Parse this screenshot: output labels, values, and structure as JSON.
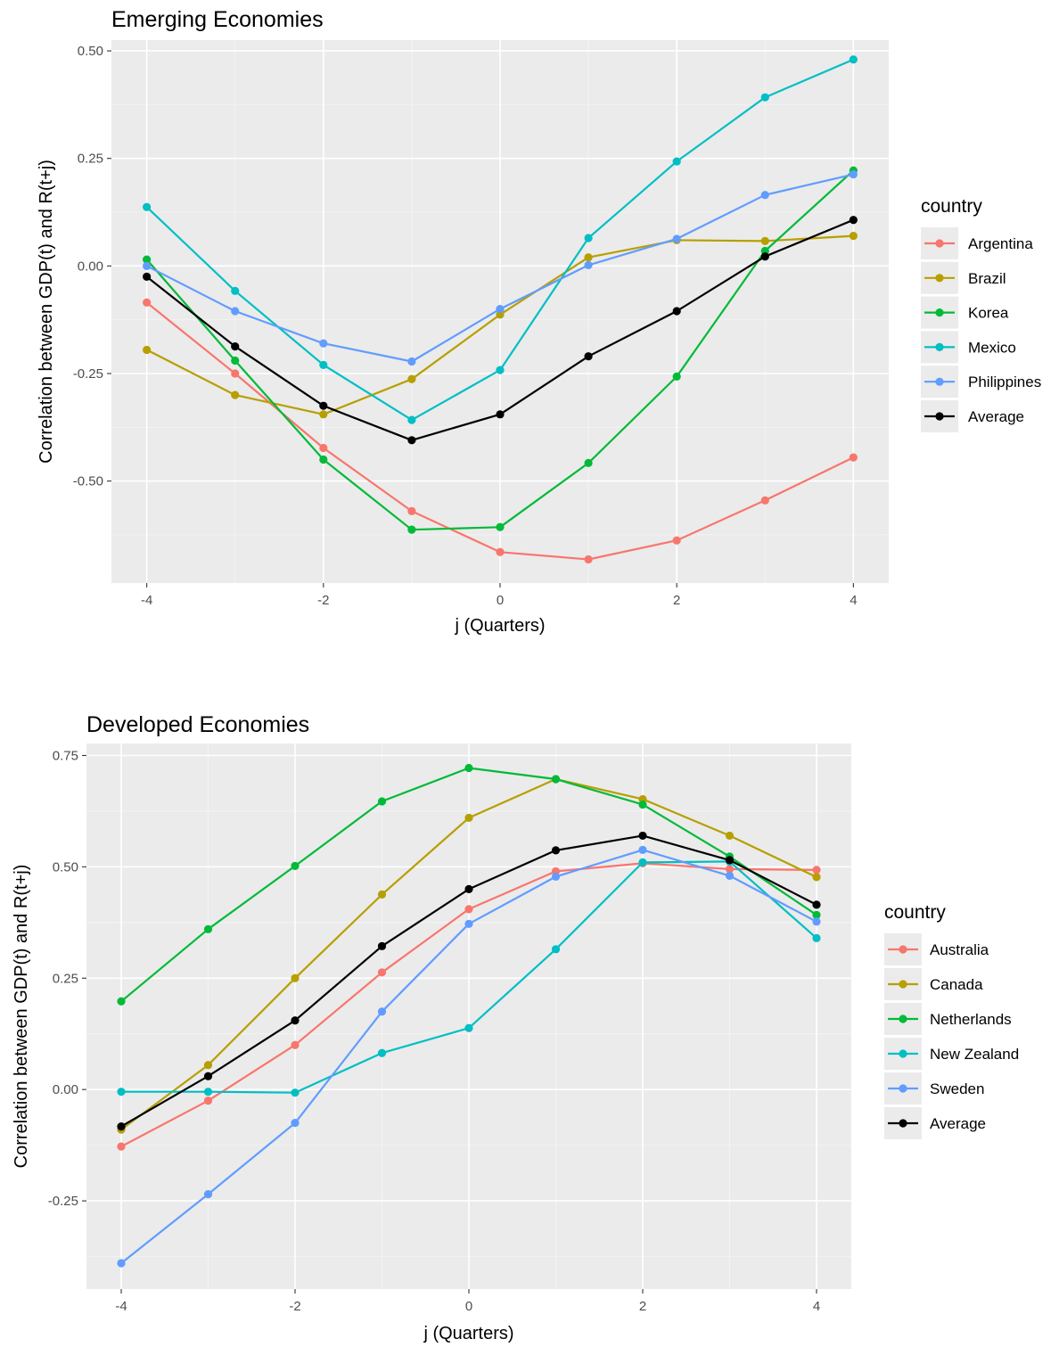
{
  "chart_data": [
    {
      "type": "line",
      "title": "Emerging Economies",
      "xlabel": "j (Quarters)",
      "ylabel": "Correlation between GDP(t) and R(t+j)",
      "x": [
        -4,
        -3,
        -2,
        -1,
        0,
        1,
        2,
        3,
        4
      ],
      "xlim": [
        -4.4,
        4.4
      ],
      "ylim": [
        -0.737,
        0.525
      ],
      "x_ticks": [
        -4,
        -2,
        0,
        2,
        4
      ],
      "x_tick_labels": [
        "-4",
        "-2",
        "0",
        "2",
        "4"
      ],
      "y_ticks": [
        0.5,
        0.25,
        0,
        -0.25,
        -0.5
      ],
      "y_tick_labels": [
        "0.50",
        "0.25",
        "0.00",
        "-0.25",
        "-0.50"
      ],
      "grid": true,
      "legend_title": "country",
      "legend_position": "right",
      "series": [
        {
          "name": "Argentina",
          "color": "#F8766D",
          "values": [
            -0.085,
            -0.25,
            -0.423,
            -0.57,
            -0.665,
            -0.682,
            -0.638,
            -0.545,
            -0.445
          ]
        },
        {
          "name": "Brazil",
          "color": "#B79F00",
          "values": [
            -0.195,
            -0.3,
            -0.345,
            -0.263,
            -0.113,
            0.02,
            0.06,
            0.058,
            0.07
          ]
        },
        {
          "name": "Korea",
          "color": "#00BA38",
          "values": [
            0.015,
            -0.22,
            -0.45,
            -0.613,
            -0.607,
            -0.458,
            -0.257,
            0.035,
            0.222
          ]
        },
        {
          "name": "Mexico",
          "color": "#00BFC4",
          "values": [
            0.137,
            -0.058,
            -0.23,
            -0.358,
            -0.242,
            0.065,
            0.243,
            0.392,
            0.48
          ]
        },
        {
          "name": "Philippines",
          "color": "#619CFF",
          "values": [
            0.0,
            -0.105,
            -0.18,
            -0.222,
            -0.1,
            0.002,
            0.063,
            0.165,
            0.213
          ]
        },
        {
          "name": "Average",
          "color": "#000000",
          "values": [
            -0.025,
            -0.187,
            -0.325,
            -0.405,
            -0.345,
            -0.21,
            -0.105,
            0.022,
            0.107
          ]
        }
      ]
    },
    {
      "type": "line",
      "title": "Developed Economies",
      "xlabel": "j (Quarters)",
      "ylabel": "Correlation between GDP(t) and R(t+j)",
      "x": [
        -4,
        -3,
        -2,
        -1,
        0,
        1,
        2,
        3,
        4
      ],
      "xlim": [
        -4.4,
        4.4
      ],
      "ylim": [
        -0.448,
        0.777
      ],
      "x_ticks": [
        -4,
        -2,
        0,
        2,
        4
      ],
      "x_tick_labels": [
        "-4",
        "-2",
        "0",
        "2",
        "4"
      ],
      "y_ticks": [
        0.75,
        0.5,
        0.25,
        0,
        -0.25
      ],
      "y_tick_labels": [
        "0.75",
        "0.50",
        "0.25",
        "0.00",
        "-0.25"
      ],
      "grid": true,
      "legend_title": "country",
      "legend_position": "right",
      "series": [
        {
          "name": "Australia",
          "color": "#F8766D",
          "values": [
            -0.128,
            -0.025,
            0.1,
            0.263,
            0.405,
            0.49,
            0.508,
            0.495,
            0.493
          ]
        },
        {
          "name": "Canada",
          "color": "#B79F00",
          "values": [
            -0.09,
            0.055,
            0.25,
            0.438,
            0.61,
            0.697,
            0.652,
            0.57,
            0.477
          ]
        },
        {
          "name": "Netherlands",
          "color": "#00BA38",
          "values": [
            0.198,
            0.36,
            0.502,
            0.647,
            0.722,
            0.697,
            0.64,
            0.523,
            0.392
          ]
        },
        {
          "name": "New Zealand",
          "color": "#00BFC4",
          "values": [
            -0.005,
            -0.005,
            -0.007,
            0.082,
            0.138,
            0.315,
            0.51,
            0.512,
            0.34
          ]
        },
        {
          "name": "Sweden",
          "color": "#619CFF",
          "values": [
            -0.39,
            -0.235,
            -0.075,
            0.175,
            0.372,
            0.478,
            0.538,
            0.48,
            0.377
          ]
        },
        {
          "name": "Average",
          "color": "#000000",
          "values": [
            -0.083,
            0.03,
            0.155,
            0.322,
            0.45,
            0.537,
            0.57,
            0.515,
            0.415
          ]
        }
      ]
    }
  ]
}
